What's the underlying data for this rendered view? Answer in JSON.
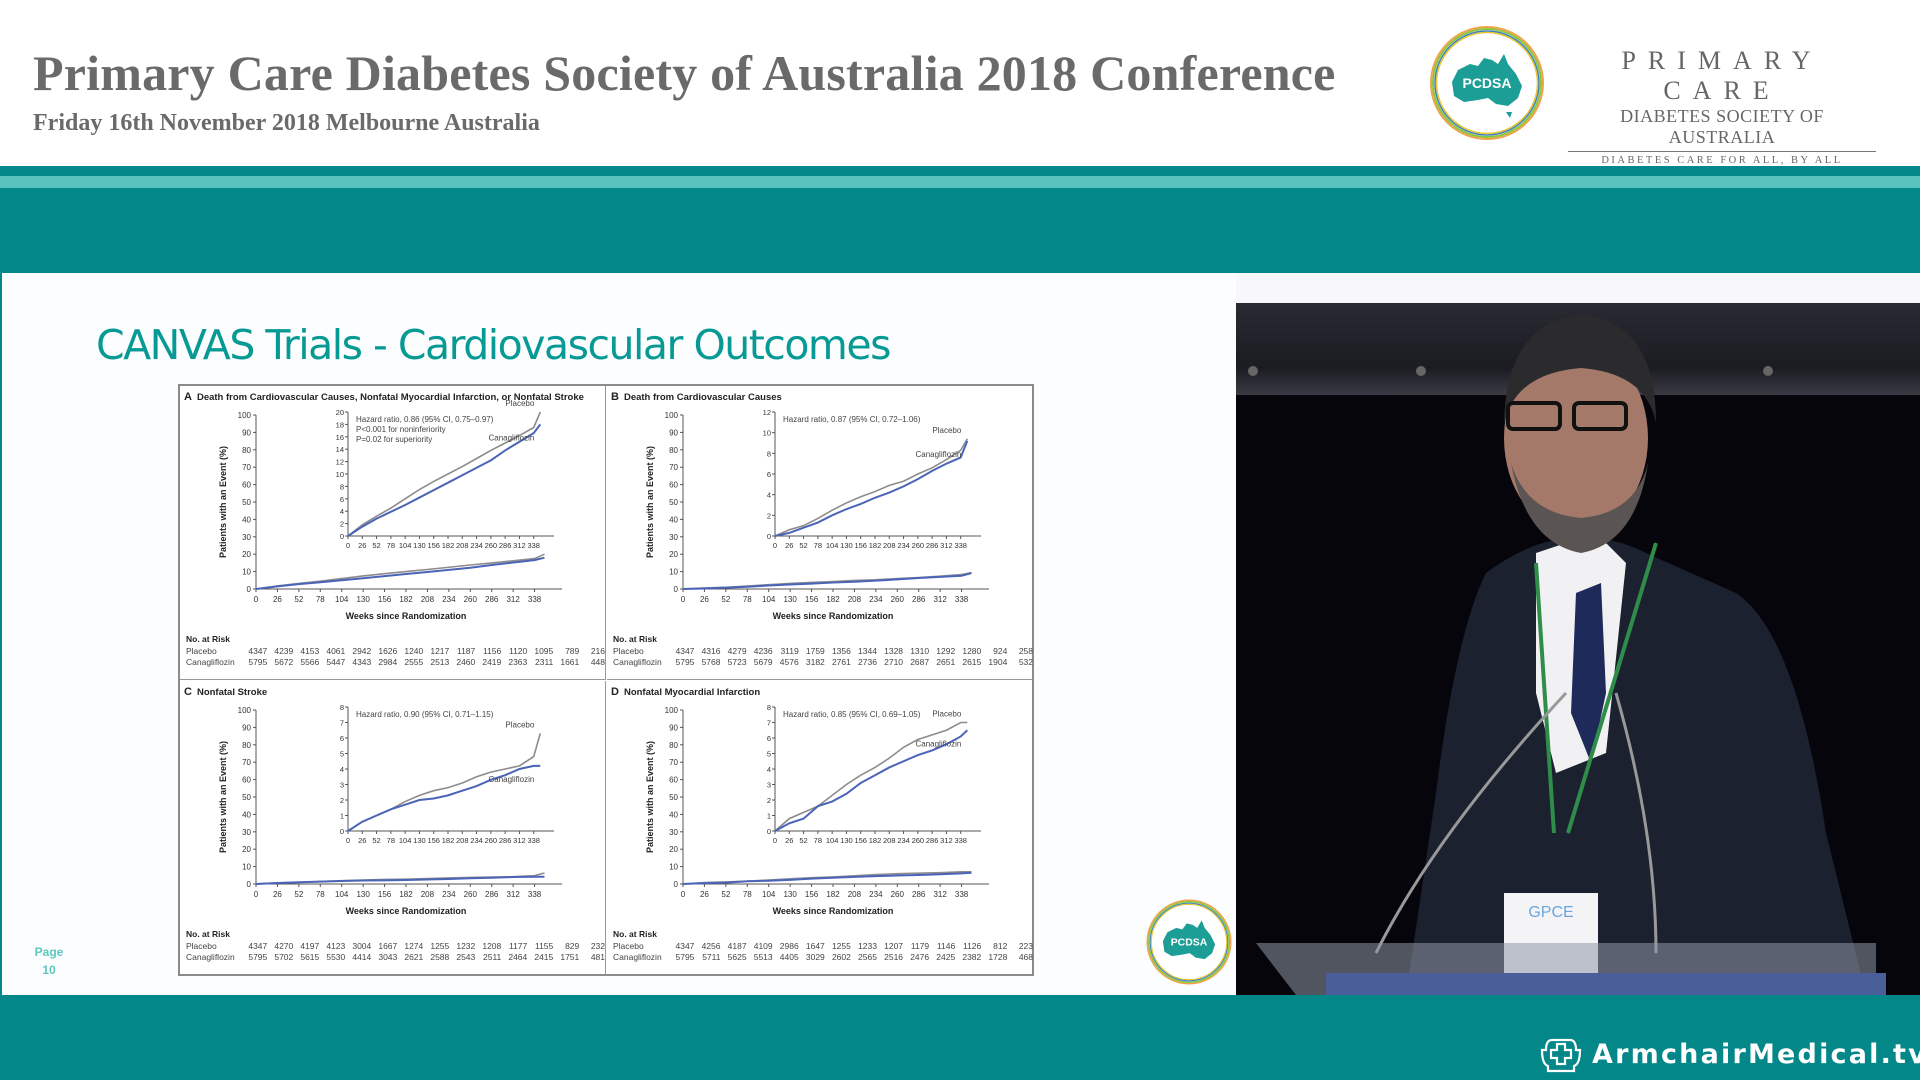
{
  "header": {
    "title": "Primary Care Diabetes Society of Australia 2018 Conference",
    "subtitle": "Friday 16th November 2018 Melbourne Australia",
    "logo": {
      "badge_text": "PCDSA",
      "line1": "PRIMARY CARE",
      "line2": "DIABETES SOCIETY OF AUSTRALIA",
      "line3": "DIABETES CARE FOR ALL, BY ALL"
    }
  },
  "colors": {
    "teal_dark": "#038788",
    "teal_light": "#57c3bc",
    "slide_title": "#079a94",
    "placebo_line": "#8c8c8c",
    "canagliflozin_line": "#4a64b8"
  },
  "slide": {
    "title": "CANVAS Trials - Cardiovascular Outcomes",
    "page_label": "Page",
    "page_number": "10",
    "logo_badge": "PCDSA"
  },
  "footer": {
    "brand": "ArmchairMedical.tv",
    "icon": "armchair-cross-icon"
  },
  "video": {
    "description": "Speaker at lectern",
    "badge_text": "GPCE"
  },
  "chart_data": [
    {
      "type": "line",
      "panel": "A",
      "title": "Death from Cardiovascular Causes, Nonfatal Myocardial Infarction, or Nonfatal Stroke",
      "xlabel": "Weeks since Randomization",
      "ylabel": "Patients with an Event (%)",
      "ylim": [
        0,
        100
      ],
      "yticks": [
        0,
        10,
        20,
        30,
        40,
        50,
        60,
        70,
        80,
        90,
        100
      ],
      "x": [
        0,
        26,
        52,
        78,
        104,
        130,
        156,
        182,
        208,
        234,
        260,
        286,
        312,
        338
      ],
      "inset": {
        "ylim": [
          0,
          20
        ],
        "yticks": [
          0,
          2,
          4,
          6,
          8,
          10,
          12,
          14,
          16,
          18,
          20
        ],
        "annotations": [
          "Hazard ratio, 0.86 (95% CI, 0.75–0.97)",
          "P<0.001 for noninferiority",
          "P=0.02 for superiority"
        ]
      },
      "series": [
        {
          "name": "Placebo",
          "values": [
            0,
            1.8,
            3.2,
            4.5,
            6.0,
            7.5,
            8.8,
            10.0,
            11.2,
            12.5,
            13.8,
            15.0,
            16.2,
            17.5,
            20.0
          ]
        },
        {
          "name": "Canagliflozin",
          "values": [
            0,
            1.5,
            2.8,
            3.9,
            5.0,
            6.2,
            7.4,
            8.6,
            9.8,
            11.0,
            12.2,
            13.8,
            15.2,
            16.6,
            18.0
          ]
        }
      ],
      "x_series": [
        0,
        26,
        52,
        78,
        104,
        130,
        156,
        182,
        208,
        234,
        260,
        286,
        312,
        338,
        350
      ],
      "risk_table": {
        "header": "No. at Risk",
        "rows": [
          {
            "label": "Placebo",
            "values": [
              4347,
              4239,
              4153,
              4061,
              2942,
              1626,
              1240,
              1217,
              1187,
              1156,
              1120,
              1095,
              789,
              216
            ]
          },
          {
            "label": "Canagliflozin",
            "values": [
              5795,
              5672,
              5566,
              5447,
              4343,
              2984,
              2555,
              2513,
              2460,
              2419,
              2363,
              2311,
              1661,
              448
            ]
          }
        ]
      }
    },
    {
      "type": "line",
      "panel": "B",
      "title": "Death from Cardiovascular Causes",
      "xlabel": "Weeks since Randomization",
      "ylabel": "Patients with an Event (%)",
      "ylim": [
        0,
        100
      ],
      "yticks": [
        0,
        10,
        20,
        30,
        40,
        50,
        60,
        70,
        80,
        90,
        100
      ],
      "x": [
        0,
        26,
        52,
        78,
        104,
        130,
        156,
        182,
        208,
        234,
        260,
        286,
        312,
        338
      ],
      "inset": {
        "ylim": [
          0,
          12
        ],
        "yticks": [
          0,
          2,
          4,
          6,
          8,
          10,
          12
        ],
        "annotations": [
          "Hazard ratio, 0.87 (95% CI, 0.72–1.06)"
        ]
      },
      "series": [
        {
          "name": "Placebo",
          "values": [
            0,
            0.6,
            1.0,
            1.7,
            2.5,
            3.2,
            3.8,
            4.3,
            4.9,
            5.3,
            6.0,
            6.6,
            7.4,
            8.3,
            9.4
          ]
        },
        {
          "name": "Canagliflozin",
          "values": [
            0,
            0.3,
            0.8,
            1.3,
            2.0,
            2.6,
            3.1,
            3.7,
            4.2,
            4.8,
            5.5,
            6.3,
            7.0,
            7.6,
            9.2
          ]
        }
      ],
      "x_series": [
        0,
        26,
        52,
        78,
        104,
        130,
        156,
        182,
        208,
        234,
        260,
        286,
        312,
        338,
        350
      ],
      "risk_table": {
        "header": "No. at Risk",
        "rows": [
          {
            "label": "Placebo",
            "values": [
              4347,
              4316,
              4279,
              4236,
              3119,
              1759,
              1356,
              1344,
              1328,
              1310,
              1292,
              1280,
              924,
              258
            ]
          },
          {
            "label": "Canagliflozin",
            "values": [
              5795,
              5768,
              5723,
              5679,
              4576,
              3182,
              2761,
              2736,
              2710,
              2687,
              2651,
              2615,
              1904,
              532
            ]
          }
        ]
      }
    },
    {
      "type": "line",
      "panel": "C",
      "title": "Nonfatal Stroke",
      "xlabel": "Weeks since Randomization",
      "ylabel": "Patients with an Event (%)",
      "ylim": [
        0,
        100
      ],
      "yticks": [
        0,
        10,
        20,
        30,
        40,
        50,
        60,
        70,
        80,
        90,
        100
      ],
      "x": [
        0,
        26,
        52,
        78,
        104,
        130,
        156,
        182,
        208,
        234,
        260,
        286,
        312,
        338
      ],
      "inset": {
        "ylim": [
          0,
          8
        ],
        "yticks": [
          0,
          1,
          2,
          3,
          4,
          5,
          6,
          7,
          8
        ],
        "annotations": [
          "Hazard ratio, 0.90 (95% CI, 0.71–1.15)"
        ]
      },
      "series": [
        {
          "name": "Placebo",
          "values": [
            0,
            0.6,
            1.0,
            1.4,
            1.9,
            2.3,
            2.6,
            2.8,
            3.1,
            3.5,
            3.8,
            4.0,
            4.2,
            4.8,
            6.3
          ]
        },
        {
          "name": "Canagliflozin",
          "values": [
            0,
            0.6,
            1.0,
            1.4,
            1.7,
            2.0,
            2.1,
            2.3,
            2.6,
            2.9,
            3.3,
            3.6,
            4.0,
            4.2,
            4.2
          ]
        }
      ],
      "x_series": [
        0,
        26,
        52,
        78,
        104,
        130,
        156,
        182,
        208,
        234,
        260,
        286,
        312,
        338,
        350
      ],
      "risk_table": {
        "header": "No. at Risk",
        "rows": [
          {
            "label": "Placebo",
            "values": [
              4347,
              4270,
              4197,
              4123,
              3004,
              1667,
              1274,
              1255,
              1232,
              1208,
              1177,
              1155,
              829,
              232
            ]
          },
          {
            "label": "Canagliflozin",
            "values": [
              5795,
              5702,
              5615,
              5530,
              4414,
              3043,
              2621,
              2588,
              2543,
              2511,
              2464,
              2415,
              1751,
              481
            ]
          }
        ]
      }
    },
    {
      "type": "line",
      "panel": "D",
      "title": "Nonfatal Myocardial Infarction",
      "xlabel": "Weeks since Randomization",
      "ylabel": "Patients with an Event (%)",
      "ylim": [
        0,
        100
      ],
      "yticks": [
        0,
        10,
        20,
        30,
        40,
        50,
        60,
        70,
        80,
        90,
        100
      ],
      "x": [
        0,
        26,
        52,
        78,
        104,
        130,
        156,
        182,
        208,
        234,
        260,
        286,
        312,
        338
      ],
      "inset": {
        "ylim": [
          0,
          8
        ],
        "yticks": [
          0,
          1,
          2,
          3,
          4,
          5,
          6,
          7,
          8
        ],
        "annotations": [
          "Hazard ratio, 0.85 (95% CI, 0.69–1.05)"
        ]
      },
      "series": [
        {
          "name": "Placebo",
          "values": [
            0,
            0.8,
            1.2,
            1.6,
            2.3,
            3.0,
            3.6,
            4.1,
            4.7,
            5.4,
            5.9,
            6.2,
            6.5,
            7.0,
            7.0
          ]
        },
        {
          "name": "Canagliflozin",
          "values": [
            0,
            0.5,
            0.8,
            1.6,
            1.9,
            2.4,
            3.1,
            3.6,
            4.1,
            4.5,
            4.9,
            5.2,
            5.6,
            6.1,
            6.5
          ]
        }
      ],
      "x_series": [
        0,
        26,
        52,
        78,
        104,
        130,
        156,
        182,
        208,
        234,
        260,
        286,
        312,
        338,
        350
      ],
      "risk_table": {
        "header": "No. at Risk",
        "rows": [
          {
            "label": "Placebo",
            "values": [
              4347,
              4256,
              4187,
              4109,
              2986,
              1647,
              1255,
              1233,
              1207,
              1179,
              1146,
              1126,
              812,
              223
            ]
          },
          {
            "label": "Canagliflozin",
            "values": [
              5795,
              5711,
              5625,
              5513,
              4405,
              3029,
              2602,
              2565,
              2516,
              2476,
              2425,
              2382,
              1728,
              468
            ]
          }
        ]
      }
    }
  ]
}
